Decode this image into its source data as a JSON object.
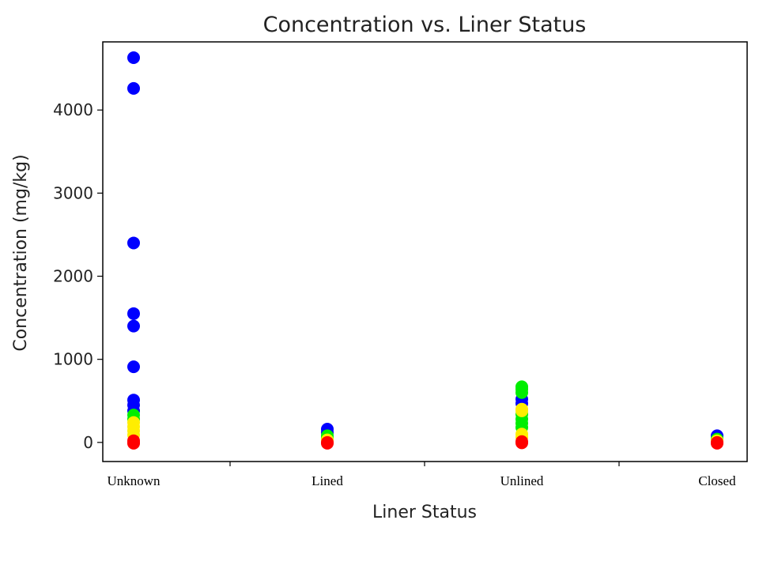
{
  "chart_data": {
    "type": "scatter",
    "title": "Concentration vs. Liner Status",
    "xlabel": "Liner Status",
    "ylabel": "Concentration (mg/kg)",
    "categories": [
      "Unknown",
      "Lined",
      "Unlined",
      "Closed"
    ],
    "ylim": [
      -230,
      4820
    ],
    "yticks": [
      0,
      1000,
      2000,
      3000,
      4000
    ],
    "ytick_labels": [
      "0",
      "1000",
      "2000",
      "3000",
      "4000"
    ],
    "grid": false,
    "series": [
      {
        "name": "blue",
        "color": "#0000ff",
        "points": [
          [
            "Unknown",
            4630
          ],
          [
            "Unknown",
            4260
          ],
          [
            "Unknown",
            2400
          ],
          [
            "Unknown",
            1550
          ],
          [
            "Unknown",
            1400
          ],
          [
            "Unknown",
            910
          ],
          [
            "Unknown",
            510
          ],
          [
            "Unknown",
            450
          ],
          [
            "Unknown",
            380
          ],
          [
            "Lined",
            160
          ],
          [
            "Lined",
            120
          ],
          [
            "Unlined",
            520
          ],
          [
            "Unlined",
            470
          ],
          [
            "Closed",
            80
          ]
        ]
      },
      {
        "name": "green",
        "color": "#00ee00",
        "points": [
          [
            "Unknown",
            330
          ],
          [
            "Unknown",
            280
          ],
          [
            "Lined",
            80
          ],
          [
            "Lined",
            50
          ],
          [
            "Unlined",
            670
          ],
          [
            "Unlined",
            640
          ],
          [
            "Unlined",
            600
          ],
          [
            "Unlined",
            340
          ],
          [
            "Unlined",
            280
          ],
          [
            "Unlined",
            230
          ],
          [
            "Unlined",
            180
          ],
          [
            "Closed",
            40
          ]
        ]
      },
      {
        "name": "yellow",
        "color": "#ffee00",
        "points": [
          [
            "Unknown",
            240
          ],
          [
            "Unknown",
            190
          ],
          [
            "Unknown",
            140
          ],
          [
            "Unknown",
            90
          ],
          [
            "Lined",
            30
          ],
          [
            "Unlined",
            400
          ],
          [
            "Unlined",
            380
          ],
          [
            "Unlined",
            100
          ],
          [
            "Unlined",
            60
          ],
          [
            "Closed",
            20
          ]
        ]
      },
      {
        "name": "red",
        "color": "#ff0000",
        "points": [
          [
            "Unknown",
            20
          ],
          [
            "Unknown",
            0
          ],
          [
            "Unknown",
            -10
          ],
          [
            "Lined",
            0
          ],
          [
            "Lined",
            -10
          ],
          [
            "Unlined",
            10
          ],
          [
            "Unlined",
            -5
          ],
          [
            "Closed",
            0
          ],
          [
            "Closed",
            -10
          ]
        ]
      }
    ]
  }
}
